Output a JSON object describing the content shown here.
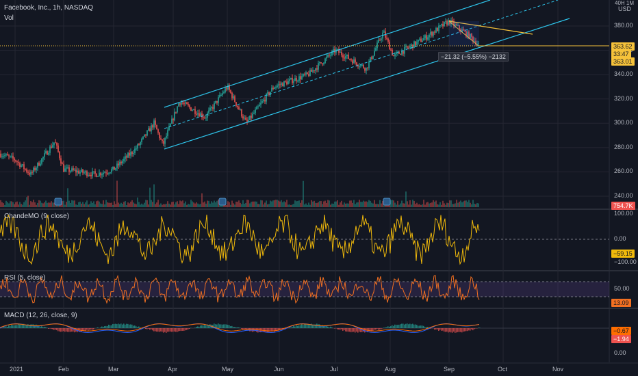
{
  "header": {
    "symbol": "Facebook, Inc., 1h, NASDAQ",
    "vol": "Vol",
    "currency_top": "40H 1M",
    "currency": "USD"
  },
  "price_axis": {
    "ticks": [
      "380.00",
      "360.00",
      "340.00",
      "320.00",
      "300.00",
      "280.00",
      "260.00",
      "240.00"
    ]
  },
  "price_tags": {
    "last": "363.62",
    "countdown": "33:47",
    "prev": "363.01",
    "volume": "754.7K"
  },
  "measure_label": "−21.32 (−5.55%) −2132",
  "panes": {
    "cmo": {
      "title": "ChandeMO (9, close)",
      "ticks": [
        "100.00",
        "0.00",
        "−100.00"
      ],
      "value": "−59.15"
    },
    "rsi": {
      "title": "RSI (5, close)",
      "ticks": [
        "50.00"
      ],
      "value": "13.09"
    },
    "macd": {
      "title": "MACD (12, 26, close, 9)",
      "ticks": [
        "0.00"
      ],
      "value1": "−0.67",
      "value2": "−1.94"
    }
  },
  "time_axis": [
    "2021",
    "Feb",
    "Mar",
    "Apr",
    "May",
    "Jun",
    "Jul",
    "Aug",
    "Sep",
    "Oct",
    "Nov"
  ],
  "colors": {
    "bg": "#131722",
    "up": "#26a69a",
    "down": "#ef5350",
    "channel": "#2ec4ea",
    "wedge": "#f6c23a",
    "cmo": "#f0b90b",
    "rsi": "#f37021",
    "macd": "#2962ff",
    "signal": "#ff6d00",
    "grid": "#242733"
  },
  "chart_data": [
    {
      "type": "line",
      "title": "Facebook, Inc., 1h, NASDAQ",
      "xlabel": "",
      "ylabel": "USD",
      "ylim": [
        230,
        400
      ],
      "x": [
        "Jan",
        "Feb",
        "Mar",
        "Apr",
        "May",
        "Jun",
        "Jul",
        "Aug",
        "Sep"
      ],
      "series": [
        {
          "values": [
            275,
            262,
            258,
            300,
            325,
            330,
            355,
            365,
            380
          ]
        }
      ]
    },
    {
      "type": "line",
      "title": "ChandeMO (9, close)",
      "ylim": [
        -100,
        100
      ],
      "series": [
        {
          "name": "ChandeMO (9, close)",
          "values": [
            -59.15
          ]
        }
      ]
    },
    {
      "type": "line",
      "title": "RSI (5, close)",
      "ylim": [
        0,
        100
      ],
      "series": [
        {
          "name": "RSI (5, close)",
          "values": [
            13.09
          ]
        }
      ]
    },
    {
      "type": "line",
      "title": "MACD (12, 26, close, 9)",
      "series": [
        {
          "values": [
            -0.67
          ]
        },
        {
          "values": [
            -1.94
          ]
        }
      ]
    }
  ]
}
